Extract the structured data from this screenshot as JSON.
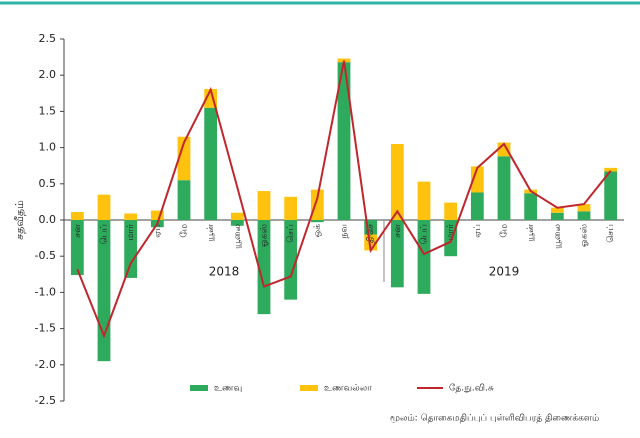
{
  "chart_data": {
    "type": "bar",
    "y_label": "சதவீதம்",
    "categories": [
      "சன",
      "பெப்",
      "மார்",
      "ஏப்",
      "மே",
      "யூன்",
      "யூலை",
      "ஓகஸ்",
      "செப்",
      "ஒக்",
      "நவ",
      "திசெ",
      "சன",
      "பெப்",
      "மார்",
      "ஏப்",
      "மே",
      "யூன்",
      "யூலை",
      "ஓகஸ்",
      "செப்"
    ],
    "year_labels": [
      "2018",
      "2019"
    ],
    "series": [
      {
        "name": "உணவு",
        "color": "#2eaa5c",
        "kind": "bar",
        "values": [
          -0.76,
          -1.95,
          -0.8,
          -0.1,
          0.55,
          1.55,
          -0.08,
          -1.3,
          -1.1,
          -0.03,
          2.18,
          -0.2,
          -0.93,
          -1.02,
          -0.5,
          0.38,
          0.88,
          0.37,
          0.1,
          0.12,
          0.67
        ]
      },
      {
        "name": "உணவல்லா",
        "color": "#ffc20e",
        "kind": "bar",
        "values": [
          0.11,
          0.35,
          0.09,
          0.13,
          0.6,
          0.26,
          0.1,
          0.4,
          0.32,
          0.42,
          0.05,
          -0.22,
          1.05,
          0.53,
          0.24,
          0.36,
          0.19,
          0.05,
          0.07,
          0.1,
          0.05
        ]
      },
      {
        "name": "தே.நு.வி.சு",
        "color": "#c0272d",
        "kind": "line",
        "values": [
          -0.68,
          -1.6,
          -0.6,
          -0.05,
          1.07,
          1.8,
          0.45,
          -0.92,
          -0.78,
          0.3,
          2.2,
          -0.42,
          0.12,
          -0.47,
          -0.3,
          0.72,
          1.05,
          0.4,
          0.17,
          0.22,
          0.68
        ]
      }
    ],
    "ylim": [
      -2.5,
      2.5
    ],
    "yticks": [
      {
        "value": 2.5,
        "label": "2.5"
      },
      {
        "value": 2.0,
        "label": "2.0"
      },
      {
        "value": 1.5,
        "label": "1.5"
      },
      {
        "value": 1.0,
        "label": "1.0"
      },
      {
        "value": 0.5,
        "label": "0.5"
      },
      {
        "value": 0,
        "label": "0.0"
      },
      {
        "value": -0.5,
        "label": "-0.5"
      },
      {
        "value": -1.0,
        "label": "-1.0"
      },
      {
        "value": -1.5,
        "label": "-1.5"
      },
      {
        "value": -2.0,
        "label": "-2.0"
      },
      {
        "value": -2.5,
        "label": "-2.5"
      }
    ],
    "source": "மூலம்: தொகைமதிப்புப் புள்ளிவிபரத் திணைக்களம்"
  }
}
